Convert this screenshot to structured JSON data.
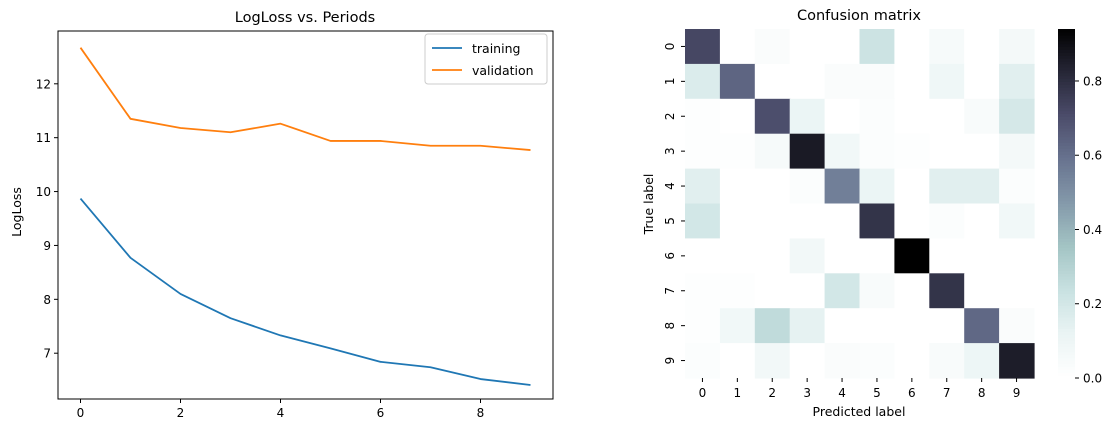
{
  "chart_data": [
    {
      "type": "line",
      "title": "LogLoss vs. Periods",
      "xlabel": "",
      "ylabel": "LogLoss",
      "x": [
        0,
        1,
        2,
        3,
        4,
        5,
        6,
        7,
        8,
        9
      ],
      "xlim": [
        -0.45,
        9.45
      ],
      "ylim": [
        6.15,
        12.98
      ],
      "xticks": [
        0,
        2,
        4,
        6,
        8
      ],
      "yticks": [
        7,
        8,
        9,
        10,
        11,
        12
      ],
      "legend_position": "top-right",
      "series": [
        {
          "name": "training",
          "color": "#1f77b4",
          "values": [
            9.87,
            8.77,
            8.1,
            7.65,
            7.33,
            7.09,
            6.84,
            6.74,
            6.52,
            6.41
          ]
        },
        {
          "name": "validation",
          "color": "#ff7f0e",
          "values": [
            12.67,
            11.35,
            11.18,
            11.1,
            11.26,
            10.94,
            10.94,
            10.85,
            10.85,
            10.77
          ]
        }
      ]
    },
    {
      "type": "heatmap",
      "title": "Confusion matrix",
      "xlabel": "Predicted label",
      "ylabel": "True label",
      "x_categories": [
        "0",
        "1",
        "2",
        "3",
        "4",
        "5",
        "6",
        "7",
        "8",
        "9"
      ],
      "y_categories": [
        "0",
        "1",
        "2",
        "3",
        "4",
        "5",
        "6",
        "7",
        "8",
        "9"
      ],
      "colormap": "bone_r",
      "vmin": 0.0,
      "vmax": 0.94,
      "colorbar_ticks": [
        0.0,
        0.2,
        0.4,
        0.6,
        0.8
      ],
      "matrix": [
        [
          0.72,
          0.0,
          0.03,
          0.0,
          0.0,
          0.22,
          0.0,
          0.05,
          0.0,
          0.06
        ],
        [
          0.17,
          0.63,
          0.0,
          0.0,
          0.03,
          0.03,
          0.0,
          0.09,
          0.0,
          0.15
        ],
        [
          0.01,
          0.0,
          0.7,
          0.11,
          0.0,
          0.02,
          0.0,
          0.0,
          0.04,
          0.19
        ],
        [
          0.01,
          0.01,
          0.05,
          0.86,
          0.08,
          0.02,
          0.01,
          0.0,
          0.0,
          0.06
        ],
        [
          0.15,
          0.0,
          0.0,
          0.02,
          0.55,
          0.11,
          0.0,
          0.15,
          0.15,
          0.02
        ],
        [
          0.2,
          0.0,
          0.0,
          0.0,
          0.0,
          0.78,
          0.0,
          0.02,
          0.0,
          0.08
        ],
        [
          0.0,
          0.0,
          0.0,
          0.07,
          0.0,
          0.0,
          0.94,
          0.0,
          0.0,
          0.0
        ],
        [
          0.01,
          0.01,
          0.0,
          0.0,
          0.2,
          0.04,
          0.0,
          0.78,
          0.0,
          0.0
        ],
        [
          0.01,
          0.08,
          0.26,
          0.13,
          0.0,
          0.0,
          0.0,
          0.0,
          0.62,
          0.03
        ],
        [
          0.02,
          0.0,
          0.07,
          0.0,
          0.03,
          0.02,
          0.0,
          0.04,
          0.1,
          0.85
        ]
      ]
    }
  ]
}
